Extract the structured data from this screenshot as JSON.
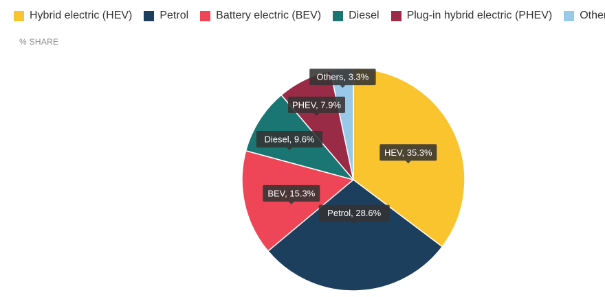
{
  "chart_data": {
    "type": "pie",
    "ylabel": "% SHARE",
    "legend_position": "top-left",
    "series": [
      {
        "name": "Hybrid electric (HEV)",
        "short": "HEV",
        "value": 35.3,
        "color": "#F9C42E"
      },
      {
        "name": "Petrol",
        "short": "Petrol",
        "value": 28.6,
        "color": "#1D3F5E"
      },
      {
        "name": "Battery electric (BEV)",
        "short": "BEV",
        "value": 15.3,
        "color": "#EE4656"
      },
      {
        "name": "Diesel",
        "short": "Diesel",
        "value": 9.6,
        "color": "#1A7673"
      },
      {
        "name": "Plug-in hybrid electric (PHEV)",
        "short": "PHEV",
        "value": 7.9,
        "color": "#9A2B46"
      },
      {
        "name": "Others",
        "short": "Others",
        "value": 3.3,
        "color": "#98C9E9"
      }
    ]
  }
}
